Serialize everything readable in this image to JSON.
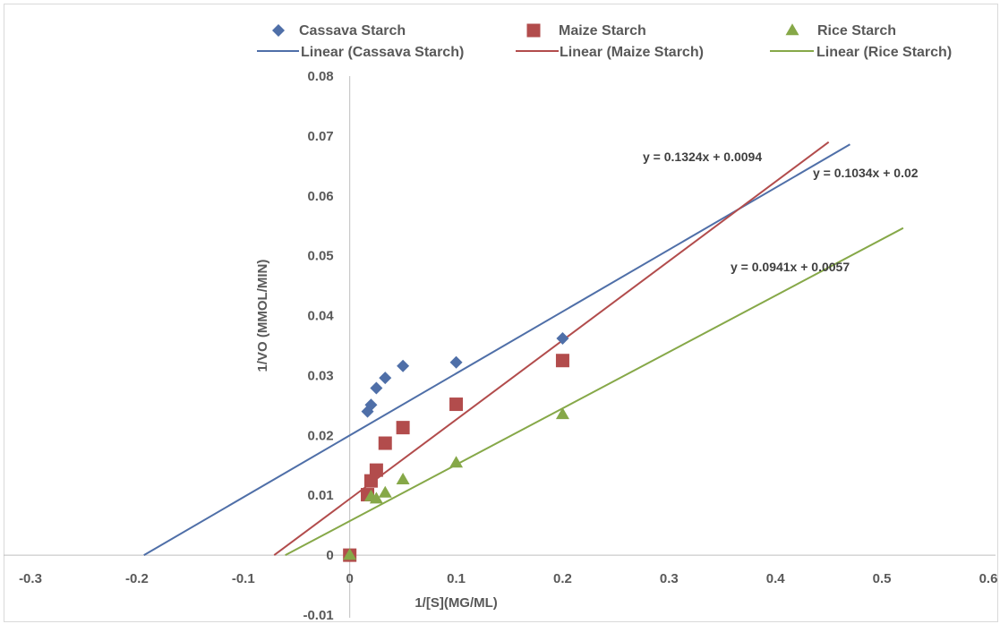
{
  "chart_data": {
    "type": "scatter",
    "title": "",
    "xlabel": "1/[S](MG/ML)",
    "ylabel": "1/VO (MMOL/MIN)",
    "xlim": [
      -0.3,
      0.6
    ],
    "ylim": [
      -0.01,
      0.08
    ],
    "x_ticks": [
      -0.3,
      -0.2,
      -0.1,
      0,
      0.1,
      0.2,
      0.3,
      0.4,
      0.5,
      0.6
    ],
    "x_tick_labels": [
      "-0.3",
      "-0.2",
      "-0.1",
      "0",
      "0.1",
      "0.2",
      "0.3",
      "0.4",
      "0.5",
      "0.6"
    ],
    "y_ticks": [
      -0.01,
      0,
      0.01,
      0.02,
      0.03,
      0.04,
      0.05,
      0.06,
      0.07,
      0.08
    ],
    "y_tick_labels": [
      "-0.01",
      "0",
      "0.01",
      "0.02",
      "0.03",
      "0.04",
      "0.05",
      "0.06",
      "0.07",
      "0.08"
    ],
    "grid": false,
    "legend_position": "top",
    "series": [
      {
        "name": "Cassava Starch",
        "marker": "diamond",
        "color": "#4f6fa8",
        "x": [
          0,
          0.0167,
          0.02,
          0.025,
          0.0333,
          0.05,
          0.1,
          0.2
        ],
        "y": [
          0,
          0.024,
          0.0251,
          0.0279,
          0.0296,
          0.0316,
          0.0322,
          0.0362
        ]
      },
      {
        "name": "Maize Starch",
        "marker": "square",
        "color": "#b24c4c",
        "x": [
          0,
          0.0167,
          0.02,
          0.025,
          0.0333,
          0.05,
          0.1,
          0.2
        ],
        "y": [
          0,
          0.0101,
          0.0124,
          0.0142,
          0.0187,
          0.0213,
          0.0252,
          0.0325
        ]
      },
      {
        "name": "Rice Starch",
        "marker": "triangle",
        "color": "#86a848",
        "x": [
          0,
          0.02,
          0.025,
          0.0333,
          0.05,
          0.1,
          0.2
        ],
        "y": [
          0,
          0.0098,
          0.0094,
          0.0104,
          0.0126,
          0.0154,
          0.0235
        ]
      }
    ],
    "trendlines": [
      {
        "name": "Linear (Cassava Starch)",
        "color": "#4f6fa8",
        "slope": 0.1034,
        "intercept": 0.02,
        "x_range": [
          -0.1934,
          0.47
        ],
        "equation": "y = 0.1034x + 0.02"
      },
      {
        "name": "Linear (Maize Starch)",
        "color": "#b24c4c",
        "slope": 0.1324,
        "intercept": 0.0094,
        "x_range": [
          -0.071,
          0.45
        ],
        "equation": "y = 0.1324x + 0.0094"
      },
      {
        "name": "Linear (Rice Starch)",
        "color": "#86a848",
        "slope": 0.0941,
        "intercept": 0.0057,
        "x_range": [
          -0.0606,
          0.52
        ],
        "equation": "y = 0.0941x + 0.0057"
      }
    ]
  }
}
